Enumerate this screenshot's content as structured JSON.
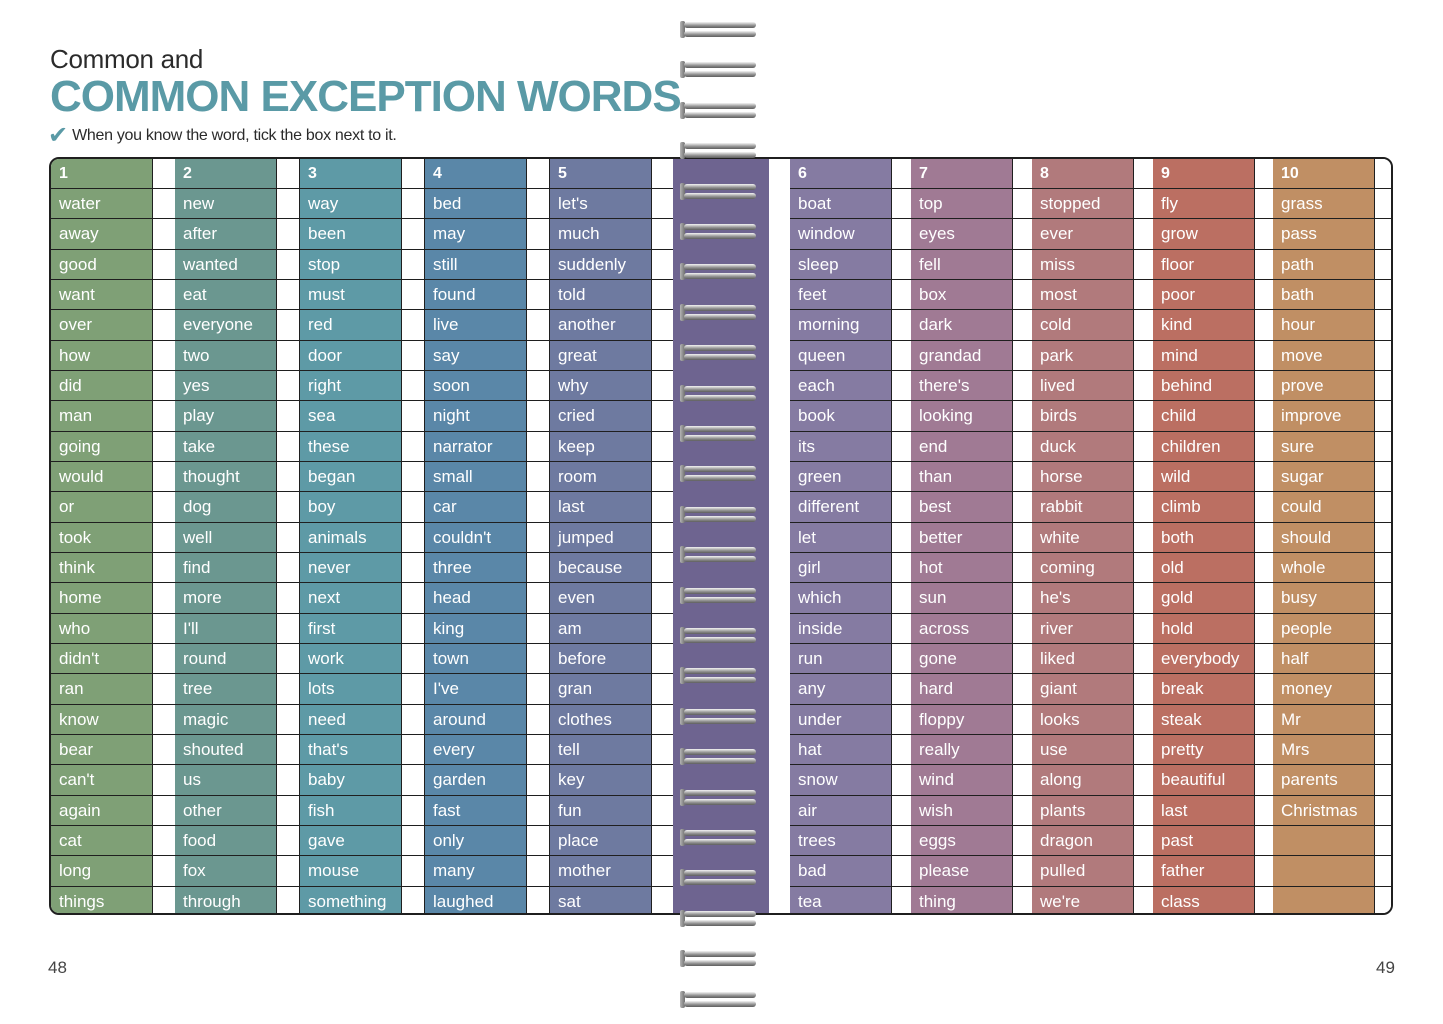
{
  "header": {
    "title_line1": "Common and",
    "title_line2": "COMMON EXCEPTION WORDS",
    "instruction": "When you know the word, tick the box next to it."
  },
  "icons": {
    "tick": "check-mark-icon"
  },
  "colors": {
    "title": "#5a9aa6",
    "gutter": "#6e6490",
    "columns": [
      "#7fa076",
      "#6b9790",
      "#5e9aa6",
      "#5a87a8",
      "#6e7aa0",
      "#857ba2",
      "#a07a94",
      "#b17a7c",
      "#bb6f62",
      "#c08f64"
    ]
  },
  "columns": [
    {
      "number": "1",
      "words": [
        "water",
        "away",
        "good",
        "want",
        "over",
        "how",
        "did",
        "man",
        "going",
        "would",
        "or",
        "took",
        "think",
        "home",
        "who",
        "didn't",
        "ran",
        "know",
        "bear",
        "can't",
        "again",
        "cat",
        "long",
        "things"
      ]
    },
    {
      "number": "2",
      "words": [
        "new",
        "after",
        "wanted",
        "eat",
        "everyone",
        "two",
        "yes",
        "play",
        "take",
        "thought",
        "dog",
        "well",
        "find",
        "more",
        "I'll",
        "round",
        "tree",
        "magic",
        "shouted",
        "us",
        "other",
        "food",
        "fox",
        "through"
      ]
    },
    {
      "number": "3",
      "words": [
        "way",
        "been",
        "stop",
        "must",
        "red",
        "door",
        "right",
        "sea",
        "these",
        "began",
        "boy",
        "animals",
        "never",
        "next",
        "first",
        "work",
        "lots",
        "need",
        "that's",
        "baby",
        "fish",
        "gave",
        "mouse",
        "something"
      ]
    },
    {
      "number": "4",
      "words": [
        "bed",
        "may",
        "still",
        "found",
        "live",
        "say",
        "soon",
        "night",
        "narrator",
        "small",
        "car",
        "couldn't",
        "three",
        "head",
        "king",
        "town",
        "I've",
        "around",
        "every",
        "garden",
        "fast",
        "only",
        "many",
        "laughed"
      ]
    },
    {
      "number": "5",
      "words": [
        "let's",
        "much",
        "suddenly",
        "told",
        "another",
        "great",
        "why",
        "cried",
        "keep",
        "room",
        "last",
        "jumped",
        "because",
        "even",
        "am",
        "before",
        "gran",
        "clothes",
        "tell",
        "key",
        "fun",
        "place",
        "mother",
        "sat"
      ]
    },
    {
      "number": "6",
      "words": [
        "boat",
        "window",
        "sleep",
        "feet",
        "morning",
        "queen",
        "each",
        "book",
        "its",
        "green",
        "different",
        "let",
        "girl",
        "which",
        "inside",
        "run",
        "any",
        "under",
        "hat",
        "snow",
        "air",
        "trees",
        "bad",
        "tea"
      ]
    },
    {
      "number": "7",
      "words": [
        "top",
        "eyes",
        "fell",
        "box",
        "dark",
        "grandad",
        "there's",
        "looking",
        "end",
        "than",
        "best",
        "better",
        "hot",
        "sun",
        "across",
        "gone",
        "hard",
        "floppy",
        "really",
        "wind",
        "wish",
        "eggs",
        "please",
        "thing"
      ]
    },
    {
      "number": "8",
      "words": [
        "stopped",
        "ever",
        "miss",
        "most",
        "cold",
        "park",
        "lived",
        "birds",
        "duck",
        "horse",
        "rabbit",
        "white",
        "coming",
        "he's",
        "river",
        "liked",
        "giant",
        "looks",
        "use",
        "along",
        "plants",
        "dragon",
        "pulled",
        "we're"
      ]
    },
    {
      "number": "9",
      "words": [
        "fly",
        "grow",
        "floor",
        "poor",
        "kind",
        "mind",
        "behind",
        "child",
        "children",
        "wild",
        "climb",
        "both",
        "old",
        "gold",
        "hold",
        "everybody",
        "break",
        "steak",
        "pretty",
        "beautiful",
        "last",
        "past",
        "father",
        "class"
      ]
    },
    {
      "number": "10",
      "words": [
        "grass",
        "pass",
        "path",
        "bath",
        "hour",
        "move",
        "prove",
        "improve",
        "sure",
        "sugar",
        "could",
        "should",
        "whole",
        "busy",
        "people",
        "half",
        "money",
        "Mr",
        "Mrs",
        "parents",
        "Christmas",
        "",
        "",
        ""
      ]
    }
  ],
  "pages": {
    "left": "48",
    "right": "49"
  }
}
